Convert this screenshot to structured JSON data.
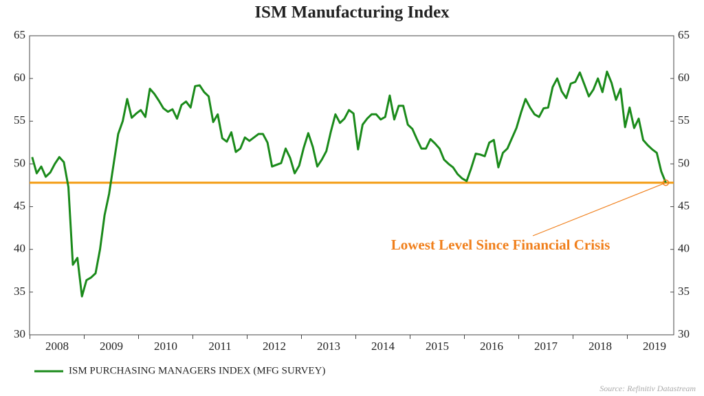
{
  "chart_data": {
    "type": "line",
    "title": "ISM Manufacturing Index",
    "categories": [
      null,
      null,
      null,
      null,
      null,
      null,
      "2008",
      null,
      null,
      null,
      null,
      null,
      null,
      null,
      null,
      null,
      null,
      null,
      "2009",
      null,
      null,
      null,
      null,
      null,
      null,
      null,
      null,
      null,
      null,
      null,
      "2010",
      null,
      null,
      null,
      null,
      null,
      null,
      null,
      null,
      null,
      null,
      null,
      "2011",
      null,
      null,
      null,
      null,
      null,
      null,
      null,
      null,
      null,
      null,
      null,
      "2012",
      null,
      null,
      null,
      null,
      null,
      null,
      null,
      null,
      null,
      null,
      null,
      "2013",
      null,
      null,
      null,
      null,
      null,
      null,
      null,
      null,
      null,
      null,
      null,
      "2014",
      null,
      null,
      null,
      null,
      null,
      null,
      null,
      null,
      null,
      null,
      null,
      "2015",
      null,
      null,
      null,
      null,
      null,
      null,
      null,
      null,
      null,
      null,
      null,
      "2016",
      null,
      null,
      null,
      null,
      null,
      null,
      null,
      null,
      null,
      null,
      null,
      "2017",
      null,
      null,
      null,
      null,
      null,
      null,
      null,
      null,
      null,
      null,
      null,
      "2018",
      null,
      null,
      null,
      null,
      null,
      null,
      null,
      null,
      null,
      null,
      null,
      "2019",
      null,
      null
    ],
    "series": [
      {
        "name": "ISM PURCHASING MANAGERS INDEX (MFG SURVEY)",
        "color": "#1a8a1a",
        "values": [
          50.8,
          48.9,
          49.7,
          48.5,
          49.0,
          50.0,
          50.8,
          50.2,
          47.3,
          38.2,
          39.0,
          34.5,
          36.4,
          36.7,
          37.2,
          40.0,
          44.0,
          46.5,
          50.0,
          53.5,
          55.0,
          57.6,
          55.4,
          55.9,
          56.3,
          55.5,
          58.8,
          58.2,
          57.4,
          56.5,
          56.1,
          56.4,
          55.3,
          56.9,
          57.3,
          56.6,
          59.1,
          59.2,
          58.4,
          57.9,
          54.9,
          55.8,
          53.0,
          52.6,
          53.7,
          51.4,
          51.8,
          53.1,
          52.7,
          53.1,
          53.5,
          53.5,
          52.5,
          49.7,
          49.9,
          50.1,
          51.8,
          50.7,
          48.9,
          49.8,
          51.9,
          53.6,
          52.0,
          49.7,
          50.5,
          51.5,
          53.8,
          55.8,
          54.8,
          55.3,
          56.3,
          55.9,
          51.7,
          54.6,
          55.3,
          55.8,
          55.8,
          55.2,
          55.5,
          58.0,
          55.2,
          56.8,
          56.8,
          54.6,
          54.1,
          52.9,
          51.8,
          51.8,
          52.9,
          52.4,
          51.8,
          50.5,
          50.0,
          49.6,
          48.8,
          48.3,
          48.0,
          49.5,
          51.2,
          51.1,
          50.9,
          52.5,
          52.8,
          49.6,
          51.3,
          51.8,
          53.0,
          54.2,
          56.0,
          57.6,
          56.6,
          55.8,
          55.5,
          56.5,
          56.6,
          59.0,
          60.0,
          58.5,
          57.7,
          59.4,
          59.6,
          60.7,
          59.3,
          57.9,
          58.7,
          60.0,
          58.4,
          60.8,
          59.5,
          57.5,
          58.8,
          54.3,
          56.6,
          54.2,
          55.3,
          52.8,
          52.2,
          51.7,
          51.3,
          49.1,
          47.8
        ]
      }
    ],
    "reference_line": {
      "value": 47.8,
      "color": "#f39c12"
    },
    "annotation": {
      "text": "Lowest Level Since Financial Crisis",
      "color": "#f07f1b"
    },
    "ylim": [
      30,
      65
    ],
    "yticks": [
      30,
      35,
      40,
      45,
      50,
      55,
      60,
      65
    ],
    "y2lim": [
      30,
      65
    ],
    "y2ticks": [
      30,
      35,
      40,
      45,
      50,
      55,
      60,
      65
    ],
    "source": "Source: Refinitiv Datastream",
    "legend": "bottom-left"
  }
}
